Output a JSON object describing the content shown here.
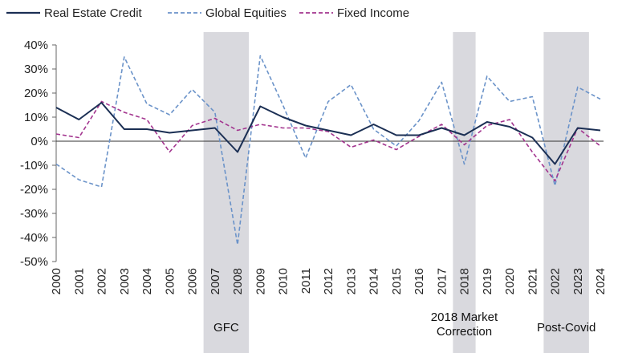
{
  "chart_data": {
    "type": "line",
    "title": "",
    "xlabel": "",
    "ylabel": "",
    "categories": [
      "2000",
      "2001",
      "2002",
      "2003",
      "2004",
      "2005",
      "2006",
      "2007",
      "2008",
      "2009",
      "2010",
      "2011",
      "2012",
      "2013",
      "2014",
      "2015",
      "2016",
      "2017",
      "2018",
      "2019",
      "2020",
      "2021",
      "2022",
      "2023",
      "2024"
    ],
    "ylim": [
      -50,
      40
    ],
    "y_ticks": [
      40,
      30,
      20,
      10,
      0,
      -10,
      -20,
      -30,
      -40,
      -50
    ],
    "y_tick_labels": [
      "40%",
      "30%",
      "20%",
      "10%",
      "0%",
      "-10%",
      "-20%",
      "-30%",
      "-40%",
      "-50%"
    ],
    "grid": false,
    "legend_position": "top-left",
    "series": [
      {
        "name": "Real Estate Credit",
        "color": "#1b2f54",
        "style": "solid",
        "values": [
          14,
          9,
          16,
          5,
          5,
          3.5,
          4.5,
          5.5,
          -4.5,
          14.5,
          10,
          6.5,
          4.5,
          2.5,
          7,
          2.5,
          2.5,
          5.5,
          2.5,
          8,
          6,
          1.5,
          -9.5,
          5.5,
          4.5
        ]
      },
      {
        "name": "Global Equities",
        "color": "#6b93c9",
        "style": "dashed",
        "values": [
          -9.5,
          -16,
          -19,
          35,
          15.5,
          11,
          21.5,
          12,
          -43,
          35.5,
          15,
          -7,
          16.5,
          23.5,
          5,
          -2,
          8.5,
          24.5,
          -9.5,
          27,
          16.5,
          18.5,
          -18.5,
          22.5,
          17.5
        ]
      },
      {
        "name": "Fixed Income",
        "color": "#a3358f",
        "style": "dashed",
        "values": [
          3,
          1.5,
          16.5,
          12,
          9,
          -4.5,
          6.5,
          9.5,
          4.5,
          7,
          5.5,
          5.5,
          4,
          -2.5,
          0.5,
          -3.5,
          2,
          7,
          -1.5,
          6.5,
          9,
          -4.5,
          -16.5,
          5.5,
          -2
        ]
      }
    ],
    "shaded_periods": [
      {
        "label_lines": [
          "GFC"
        ],
        "from": "2007",
        "to": "2008",
        "color": "#d9d9de"
      },
      {
        "label_lines": [
          "2018 Market",
          "Correction"
        ],
        "from": "2018",
        "to": "2018",
        "color": "#d9d9de"
      },
      {
        "label_lines": [
          "Post-Covid"
        ],
        "from": "2022",
        "to": "2023",
        "color": "#d9d9de"
      }
    ]
  }
}
